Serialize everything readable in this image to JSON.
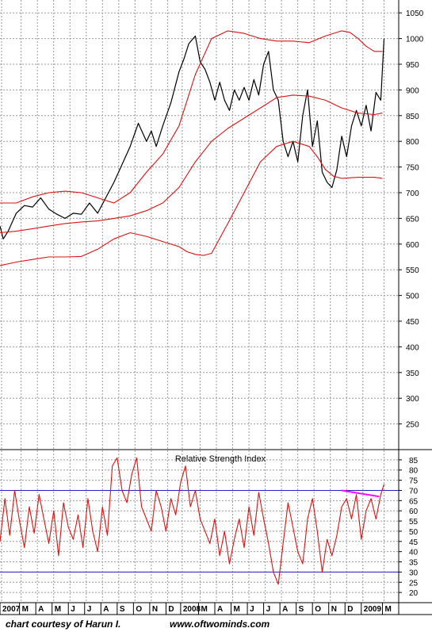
{
  "credit_left": "chart courtesy of Harun I.",
  "credit_right": "www.oftwominds.com",
  "colors": {
    "price": "#000000",
    "bands": "#e01010",
    "rsi": "#e01010",
    "rsi_levels": "#2020d0",
    "rsi_trendline": "#ff00ff",
    "grid": "#999999"
  },
  "chart_data": [
    {
      "type": "line",
      "panel": "price",
      "ylim": [
        200,
        1075
      ],
      "yticks": [
        250,
        300,
        350,
        400,
        450,
        500,
        550,
        600,
        650,
        700,
        750,
        800,
        850,
        900,
        950,
        1000,
        1050
      ],
      "x_range": [
        0,
        24.5
      ],
      "x_tick_labels": [
        "2007",
        "M",
        "A",
        "M",
        "J",
        "J",
        "A",
        "S",
        "O",
        "N",
        "D",
        "2008",
        "M",
        "A",
        "M",
        "J",
        "J",
        "A",
        "S",
        "O",
        "N",
        "D",
        "2009",
        "M"
      ],
      "x_tick_positions": [
        0,
        1.2,
        2.2,
        3.2,
        4.2,
        5.2,
        6.2,
        7.2,
        8.2,
        9.2,
        10.2,
        11.1,
        12.2,
        13.2,
        14.2,
        15.2,
        16.2,
        17.2,
        18.2,
        19.2,
        20.2,
        21.2,
        22.2,
        23.5
      ],
      "series": [
        {
          "role": "price",
          "style": "black jagged line",
          "x": [
            0,
            0.2,
            0.5,
            1,
            1.5,
            2,
            2.5,
            3,
            3.5,
            4,
            4.5,
            5,
            5.5,
            6,
            6.5,
            7,
            7.5,
            8,
            8.5,
            9,
            9.3,
            9.6,
            10,
            10.5,
            11,
            11.3,
            11.6,
            12,
            12.3,
            12.6,
            12.9,
            13.2,
            13.5,
            13.8,
            14.1,
            14.4,
            14.7,
            15,
            15.3,
            15.6,
            15.9,
            16.2,
            16.5,
            16.8,
            17.1,
            17.4,
            17.7,
            18,
            18.3,
            18.6,
            18.9,
            19.2,
            19.5,
            19.8,
            20.1,
            20.4,
            20.7,
            21,
            21.3,
            21.6,
            21.9,
            22.2,
            22.5,
            22.8,
            23.1,
            23.4,
            23.6
          ],
          "values": [
            635,
            610,
            625,
            660,
            675,
            672,
            690,
            668,
            658,
            650,
            660,
            658,
            680,
            660,
            690,
            720,
            755,
            790,
            835,
            800,
            820,
            790,
            830,
            875,
            935,
            960,
            990,
            1005,
            955,
            940,
            915,
            880,
            915,
            880,
            860,
            900,
            880,
            905,
            880,
            920,
            890,
            950,
            975,
            900,
            880,
            800,
            770,
            800,
            760,
            850,
            900,
            790,
            840,
            740,
            720,
            710,
            745,
            810,
            770,
            830,
            860,
            830,
            870,
            820,
            895,
            880,
            1000
          ]
        },
        {
          "role": "upper band",
          "style": "red smooth line",
          "x": [
            0,
            1,
            2,
            3,
            4,
            5,
            6,
            7,
            8,
            9,
            10,
            11,
            12,
            13,
            14,
            15,
            16,
            17,
            18,
            19,
            20,
            21,
            21.5,
            22,
            22.5,
            23,
            23.5
          ],
          "values": [
            680,
            680,
            692,
            700,
            703,
            700,
            690,
            680,
            700,
            740,
            775,
            830,
            930,
            1000,
            1015,
            1010,
            1000,
            995,
            995,
            992,
            1005,
            1015,
            1012,
            1000,
            985,
            975,
            975
          ]
        },
        {
          "role": "middle band",
          "style": "red smooth line",
          "x": [
            0,
            1,
            2,
            3,
            4,
            5,
            6,
            7,
            8,
            9,
            10,
            11,
            12,
            13,
            14,
            15,
            16,
            17,
            18,
            19,
            20,
            21,
            22,
            23,
            23.5
          ],
          "values": [
            622,
            625,
            630,
            635,
            640,
            643,
            645,
            650,
            655,
            665,
            680,
            710,
            760,
            800,
            825,
            845,
            865,
            885,
            890,
            888,
            880,
            865,
            855,
            852,
            855
          ]
        },
        {
          "role": "lower band",
          "style": "red smooth line",
          "x": [
            0,
            1,
            2,
            3,
            4,
            5,
            6,
            7,
            8,
            9,
            10,
            11,
            11.5,
            12,
            12.5,
            13,
            14,
            15,
            16,
            17,
            18,
            19,
            19.5,
            20,
            20.5,
            21,
            22,
            23,
            23.5
          ],
          "values": [
            558,
            565,
            570,
            575,
            575,
            576,
            590,
            610,
            622,
            615,
            605,
            595,
            585,
            580,
            578,
            582,
            640,
            700,
            760,
            790,
            800,
            790,
            770,
            745,
            732,
            728,
            730,
            730,
            728
          ]
        }
      ]
    },
    {
      "type": "line",
      "panel": "rsi",
      "title": "Relative Strength Index",
      "ylim": [
        15,
        90
      ],
      "yticks": [
        20,
        25,
        30,
        35,
        40,
        45,
        50,
        55,
        60,
        65,
        70,
        75,
        80,
        85
      ],
      "levels": [
        70,
        30
      ],
      "trendline": {
        "x": [
          21.0,
          23.3
        ],
        "values": [
          70,
          67
        ]
      },
      "series": [
        {
          "role": "RSI",
          "x": [
            0,
            0.3,
            0.6,
            0.9,
            1.2,
            1.5,
            1.8,
            2.1,
            2.4,
            2.7,
            3,
            3.3,
            3.6,
            3.9,
            4.2,
            4.5,
            4.8,
            5.1,
            5.4,
            5.7,
            6,
            6.3,
            6.6,
            6.9,
            7.2,
            7.5,
            7.8,
            8.1,
            8.4,
            8.7,
            9,
            9.3,
            9.6,
            9.9,
            10.2,
            10.5,
            10.8,
            11.1,
            11.4,
            11.7,
            12,
            12.3,
            12.6,
            12.9,
            13.2,
            13.5,
            13.8,
            14.1,
            14.4,
            14.7,
            15,
            15.3,
            15.6,
            15.9,
            16.2,
            16.5,
            16.8,
            17.1,
            17.4,
            17.7,
            18,
            18.3,
            18.6,
            18.9,
            19.2,
            19.5,
            19.8,
            20.1,
            20.4,
            20.7,
            21,
            21.3,
            21.6,
            21.9,
            22.2,
            22.5,
            22.8,
            23.1,
            23.4,
            23.6
          ],
          "values": [
            45,
            66,
            48,
            70,
            55,
            42,
            62,
            49,
            68,
            56,
            44,
            60,
            38,
            64,
            52,
            46,
            58,
            42,
            66,
            50,
            40,
            62,
            48,
            82,
            86,
            70,
            64,
            78,
            86,
            62,
            56,
            50,
            70,
            62,
            50,
            66,
            58,
            74,
            82,
            62,
            70,
            56,
            50,
            44,
            56,
            38,
            50,
            34,
            46,
            56,
            42,
            62,
            48,
            69,
            56,
            44,
            30,
            24,
            44,
            64,
            52,
            40,
            34,
            56,
            66,
            50,
            30,
            46,
            38,
            48,
            62,
            66,
            56,
            68,
            46,
            60,
            66,
            56,
            68,
            73
          ]
        }
      ]
    }
  ]
}
